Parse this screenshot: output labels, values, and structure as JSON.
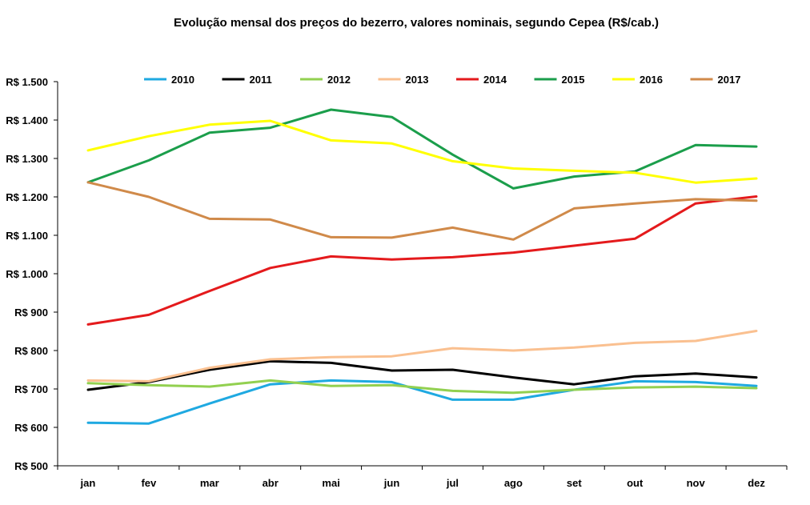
{
  "chart_data": {
    "type": "line",
    "title": "Evolução mensal dos preços do bezerro, valores nominais, segundo Cepea (R$/cab.)",
    "xlabel": "",
    "ylabel": "",
    "categories": [
      "jan",
      "fev",
      "mar",
      "abr",
      "mai",
      "jun",
      "jul",
      "ago",
      "set",
      "out",
      "nov",
      "dez"
    ],
    "ylim": [
      500,
      1500
    ],
    "yticks": [
      500,
      600,
      700,
      800,
      900,
      1000,
      1100,
      1200,
      1300,
      1400,
      1500
    ],
    "ytick_labels": [
      "R$ 500",
      "R$ 600",
      "R$ 700",
      "R$ 800",
      "R$ 900",
      "R$ 1.000",
      "R$ 1.100",
      "R$ 1.200",
      "R$ 1.300",
      "R$ 1.400",
      "R$ 1.500"
    ],
    "grid": false,
    "legend_position": "top",
    "series": [
      {
        "name": "2010",
        "color": "#1fa9e1",
        "values": [
          612,
          610,
          662,
          712,
          722,
          718,
          672,
          672,
          698,
          720,
          718,
          708
        ]
      },
      {
        "name": "2011",
        "color": "#000000",
        "values": [
          698,
          718,
          750,
          772,
          768,
          748,
          750,
          730,
          712,
          733,
          740,
          730
        ]
      },
      {
        "name": "2012",
        "color": "#92d050",
        "values": [
          715,
          710,
          706,
          722,
          708,
          710,
          695,
          690,
          698,
          704,
          706,
          702
        ]
      },
      {
        "name": "2013",
        "color": "#fac090",
        "values": [
          722,
          720,
          755,
          777,
          783,
          785,
          806,
          800,
          808,
          820,
          825,
          851
        ]
      },
      {
        "name": "2014",
        "color": "#e41a1c",
        "values": [
          868,
          893,
          955,
          1015,
          1045,
          1037,
          1043,
          1055,
          1073,
          1091,
          1183,
          1201
        ]
      },
      {
        "name": "2015",
        "color": "#1b9e4b",
        "values": [
          1238,
          1295,
          1367,
          1380,
          1427,
          1408,
          1310,
          1222,
          1253,
          1266,
          1335,
          1331
        ]
      },
      {
        "name": "2016",
        "color": "#ffff00",
        "values": [
          1321,
          1358,
          1388,
          1398,
          1347,
          1339,
          1293,
          1274,
          1268,
          1263,
          1237,
          1248
        ]
      },
      {
        "name": "2017",
        "color": "#d08a4a",
        "values": [
          1238,
          1200,
          1143,
          1141,
          1095,
          1094,
          1120,
          1089,
          1170,
          1183,
          1194,
          1190
        ]
      }
    ]
  }
}
